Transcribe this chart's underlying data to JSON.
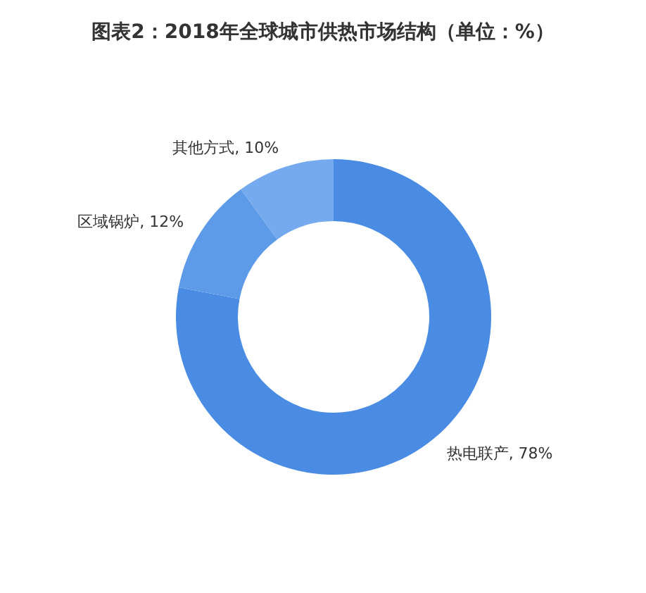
{
  "chart_data": {
    "type": "donut",
    "title": "图表2：2018年全球城市供热市场结构（单位：%）",
    "categories": [
      "热电联产",
      "区域锅炉",
      "其他方式"
    ],
    "values": [
      78,
      12,
      10
    ],
    "colors": [
      "#4a8be3",
      "#5d9ae8",
      "#75aaee"
    ],
    "value_labels": [
      "78%",
      "12%",
      "10%"
    ],
    "legend": false
  }
}
